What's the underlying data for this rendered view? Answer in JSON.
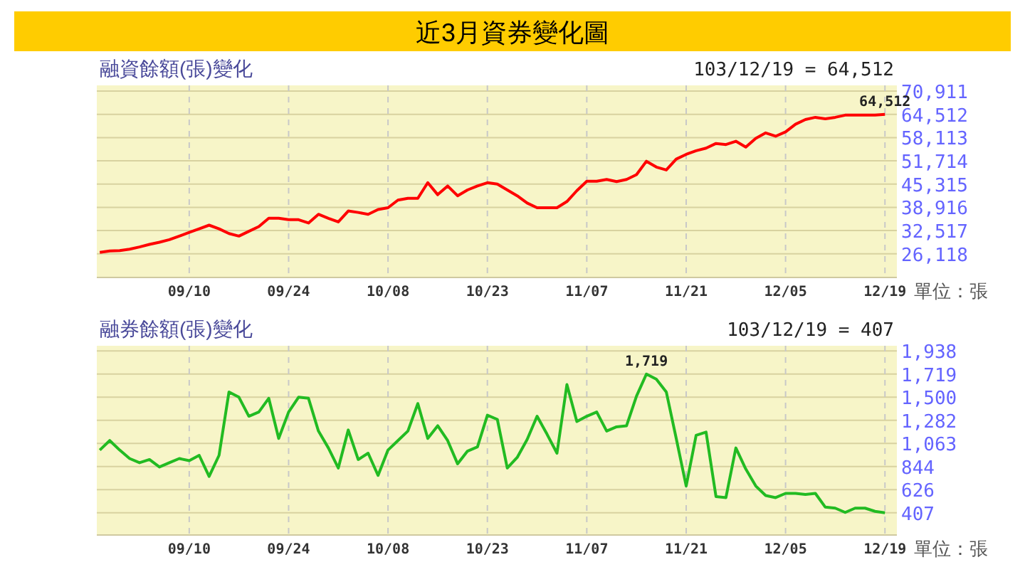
{
  "chart_data": [
    {
      "type": "line",
      "title": "近3月資券變化圖",
      "subtitle": "融資餘額(張)變化",
      "annotations": [
        "103/12/19 = 64,512",
        "單位：張",
        {
          "text": "64,512",
          "y": 64512
        }
      ],
      "categories": [
        null,
        null,
        null,
        null,
        null,
        null,
        null,
        null,
        null,
        "09/10",
        null,
        null,
        null,
        null,
        null,
        null,
        null,
        null,
        null,
        "09/24",
        null,
        null,
        null,
        null,
        null,
        null,
        null,
        null,
        null,
        "10/08",
        null,
        null,
        null,
        null,
        null,
        null,
        null,
        null,
        null,
        "10/23",
        null,
        null,
        null,
        null,
        null,
        null,
        null,
        null,
        null,
        "11/07",
        null,
        null,
        null,
        null,
        null,
        null,
        null,
        null,
        null,
        "11/21",
        null,
        null,
        null,
        null,
        null,
        null,
        null,
        null,
        null,
        "12/05",
        null,
        null,
        null,
        null,
        null,
        null,
        null,
        null,
        null,
        "12/19"
      ],
      "series": [
        {
          "color": "#ff0000",
          "values": [
            26500,
            26900,
            27000,
            27400,
            28000,
            28700,
            29300,
            30000,
            31000,
            32000,
            33000,
            34000,
            33000,
            31700,
            31000,
            32300,
            33600,
            35900,
            35900,
            35500,
            35500,
            34600,
            37000,
            35900,
            34900,
            37900,
            37500,
            37000,
            38300,
            38800,
            40900,
            41400,
            41400,
            45700,
            42400,
            44800,
            42100,
            43700,
            44800,
            45700,
            45300,
            43700,
            42100,
            40100,
            38800,
            38800,
            38800,
            40500,
            43500,
            46100,
            46100,
            46600,
            46000,
            46600,
            47900,
            51600,
            50000,
            49200,
            52200,
            53500,
            54500,
            55200,
            56500,
            56200,
            57100,
            55500,
            57900,
            59400,
            58500,
            59700,
            61800,
            63100,
            63700,
            63300,
            63700,
            64300,
            64300,
            64300,
            64300,
            64512
          ]
        }
      ],
      "ylim": [
        19600,
        72500
      ],
      "yticks": [
        {
          "value": 26118,
          "label": "26,118"
        },
        {
          "value": 32517,
          "label": "32,517"
        },
        {
          "value": 38916,
          "label": "38,916"
        },
        {
          "value": 45315,
          "label": "45,315"
        },
        {
          "value": 51714,
          "label": "51,714"
        },
        {
          "value": 58113,
          "label": "58,113"
        },
        {
          "value": 64512,
          "label": "64,512"
        },
        {
          "value": 70911,
          "label": "70,911"
        }
      ],
      "grid": true,
      "marker": "none",
      "line_style": "solid"
    },
    {
      "type": "line",
      "title": "融券餘額(張)變化",
      "annotations": [
        "103/12/19 = 407",
        "單位：張",
        {
          "text": "1,719",
          "y": 1719
        }
      ],
      "categories": [
        null,
        null,
        null,
        null,
        null,
        null,
        null,
        null,
        null,
        "09/10",
        null,
        null,
        null,
        null,
        null,
        null,
        null,
        null,
        null,
        "09/24",
        null,
        null,
        null,
        null,
        null,
        null,
        null,
        null,
        null,
        "10/08",
        null,
        null,
        null,
        null,
        null,
        null,
        null,
        null,
        null,
        "10/23",
        null,
        null,
        null,
        null,
        null,
        null,
        null,
        null,
        null,
        "11/07",
        null,
        null,
        null,
        null,
        null,
        null,
        null,
        null,
        null,
        "11/21",
        null,
        null,
        null,
        null,
        null,
        null,
        null,
        null,
        null,
        "12/05",
        null,
        null,
        null,
        null,
        null,
        null,
        null,
        null,
        null,
        "12/19"
      ],
      "series": [
        {
          "color": "#22bb22",
          "values": [
            1000,
            1090,
            1000,
            920,
            880,
            910,
            840,
            880,
            920,
            900,
            950,
            750,
            950,
            1550,
            1500,
            1320,
            1360,
            1490,
            1110,
            1360,
            1500,
            1490,
            1180,
            1020,
            830,
            1190,
            910,
            970,
            760,
            1000,
            1090,
            1180,
            1440,
            1110,
            1230,
            1090,
            870,
            990,
            1030,
            1330,
            1290,
            830,
            930,
            1100,
            1320,
            1150,
            970,
            1620,
            1270,
            1320,
            1360,
            1180,
            1220,
            1230,
            1510,
            1719,
            1670,
            1550,
            1110,
            660,
            1140,
            1170,
            560,
            550,
            1020,
            820,
            660,
            570,
            550,
            590,
            590,
            580,
            590,
            460,
            450,
            410,
            450,
            450,
            420,
            407
          ]
        }
      ],
      "ylim": [
        196,
        1987
      ],
      "yticks": [
        {
          "value": 407,
          "label": "407"
        },
        {
          "value": 626,
          "label": "626"
        },
        {
          "value": 844,
          "label": "844"
        },
        {
          "value": 1063,
          "label": "1,063"
        },
        {
          "value": 1282,
          "label": "1,282"
        },
        {
          "value": 1500,
          "label": "1,500"
        },
        {
          "value": 1719,
          "label": "1,719"
        },
        {
          "value": 1938,
          "label": "1,938"
        }
      ],
      "grid": true,
      "marker": "none",
      "line_style": "solid"
    }
  ]
}
